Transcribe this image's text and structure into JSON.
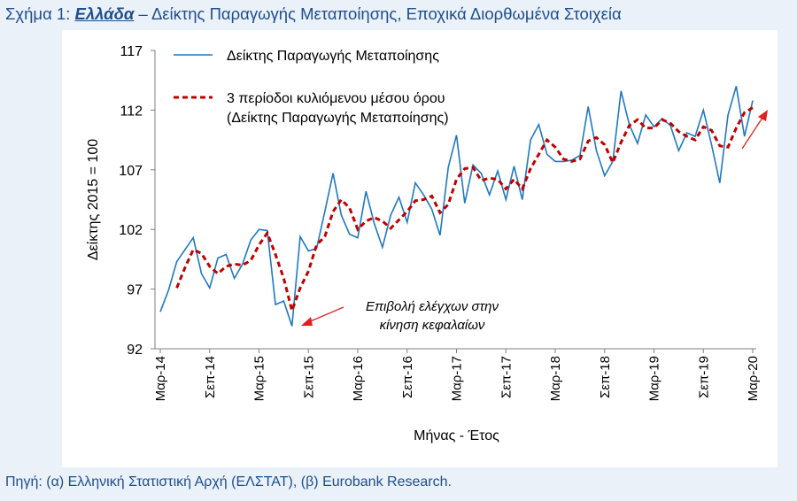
{
  "figure": {
    "title_prefix": "Σχήμα 1: ",
    "title_country": "Ελλάδα",
    "title_rest": " – Δείκτης Παραγωγής Μεταποίησης, Εποχικά Διορθωμένα Στοιχεία",
    "source": "Πηγή: (α) Ελληνική Στατιστική Αρχή (ΕΛΣΤΑΤ), (β) Eurobank Research."
  },
  "colors": {
    "series_line": "#1f78c1",
    "moving_avg": "#c00000",
    "text": "#1f4e8c",
    "axis": "#7f7f7f",
    "annotation_arrow": "#e02020"
  },
  "chart_data": {
    "type": "line",
    "xlabel": "Μήνας - Έτος",
    "ylabel": "Δείκτης 2015 = 100",
    "ylim": [
      92,
      117
    ],
    "yticks": [
      92,
      97,
      102,
      107,
      112,
      117
    ],
    "grid": false,
    "legend": [
      "Δείκτης Παραγωγής Μεταποίησης",
      "3 περίοδοι κυλιόμενου μέσου όρου",
      "(Δείκτης Παραγωγής Μεταποίησης)"
    ],
    "legend_position": "top-left",
    "xtick_labels": [
      "Μαρ-14",
      "Σεπ-14",
      "Μαρ-15",
      "Σεπ-15",
      "Μαρ-16",
      "Σεπ-16",
      "Μαρ-17",
      "Σεπ-17",
      "Μαρ-18",
      "Σεπ-18",
      "Μαρ-19",
      "Σεπ-19",
      "Μαρ-20"
    ],
    "xtick_indices": [
      0,
      6,
      12,
      18,
      24,
      30,
      36,
      42,
      48,
      54,
      60,
      66,
      72
    ],
    "start": "Μαρ-14",
    "end": "Μαρ-20",
    "series": [
      {
        "name": "Δείκτης Παραγωγής Μεταποίησης",
        "values": [
          95.1,
          96.9,
          99.3,
          100.3,
          101.3,
          98.3,
          97.1,
          99.6,
          99.9,
          97.9,
          99.1,
          101.1,
          102.0,
          101.9,
          95.7,
          96.0,
          93.9,
          101.4,
          100.2,
          100.4,
          103.5,
          106.7,
          103.2,
          101.6,
          101.3,
          105.2,
          102.5,
          100.5,
          103.2,
          104.7,
          102.6,
          105.9,
          104.9,
          103.7,
          101.5,
          107.2,
          109.9,
          104.2,
          107.4,
          106.7,
          104.9,
          106.9,
          104.5,
          107.3,
          104.5,
          109.5,
          110.8,
          108.3,
          107.7,
          107.7,
          107.8,
          108.2,
          112.3,
          108.6,
          106.5,
          107.7,
          113.6,
          110.8,
          109.2,
          111.6,
          110.6,
          111.3,
          110.7,
          108.6,
          110.1,
          109.8,
          112.0,
          109.1,
          105.9,
          111.6,
          114.0,
          109.8,
          112.8
        ]
      },
      {
        "name": "3 περίοδοι κυλιόμενου μέσου όρου (Δείκτης Παραγωγής Μεταποίησης)",
        "values": [
          null,
          null,
          97.1,
          98.8,
          100.3,
          100.0,
          98.9,
          98.3,
          98.9,
          99.1,
          99.0,
          99.4,
          100.7,
          101.7,
          99.9,
          97.9,
          95.2,
          97.1,
          98.5,
          100.7,
          101.4,
          103.5,
          104.5,
          103.8,
          102.0,
          102.7,
          103.0,
          102.7,
          102.1,
          102.8,
          103.5,
          104.4,
          104.5,
          104.8,
          103.4,
          104.1,
          106.2,
          107.1,
          107.2,
          106.1,
          106.3,
          106.2,
          105.4,
          106.2,
          105.4,
          107.1,
          108.3,
          109.5,
          108.9,
          107.9,
          107.7,
          107.9,
          109.4,
          109.7,
          109.1,
          107.6,
          109.3,
          110.7,
          111.2,
          110.5,
          110.5,
          111.2,
          110.9,
          110.2,
          109.8,
          109.5,
          110.6,
          110.3,
          109.0,
          108.9,
          110.5,
          111.8,
          112.2
        ]
      }
    ],
    "annotation": {
      "lines": [
        "Επιβολή ελέγχων στην",
        "κίνηση κεφαλαίων"
      ]
    }
  }
}
